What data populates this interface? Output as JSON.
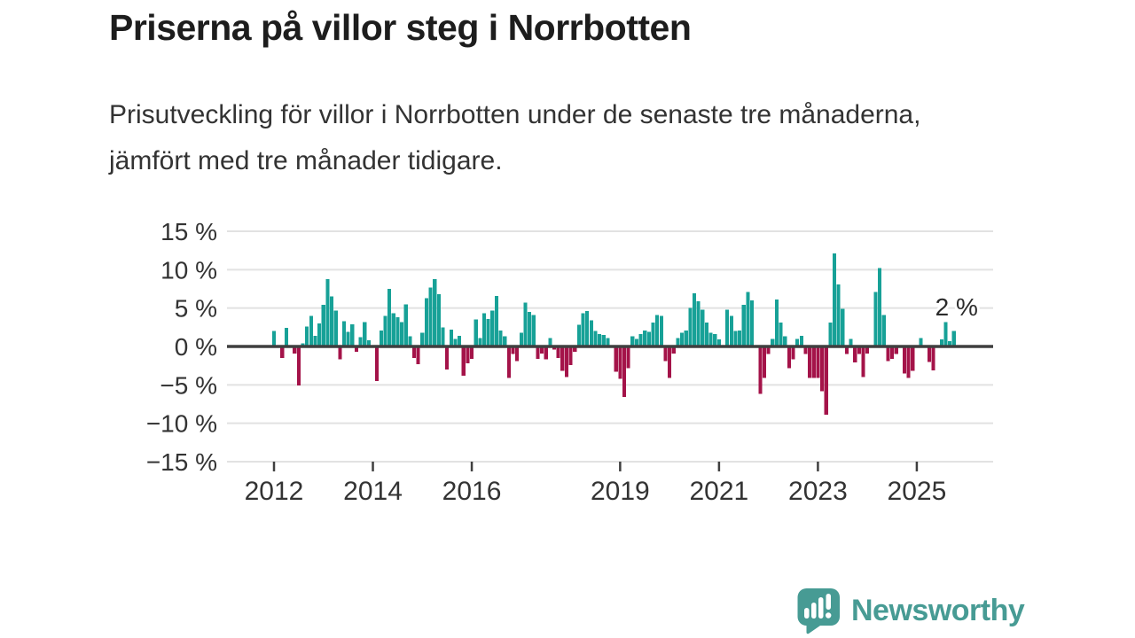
{
  "page": {
    "title": "Priserna på villor steg i Norrbotten",
    "subtitle": "Prisutveckling för villor i Norrbotten under de senaste tre månaderna, jämfört med tre månader tidigare."
  },
  "branding": {
    "logo_text": "Newsworthy",
    "logo_icon": "bar-chart-speech-bubble",
    "logo_color": "#479b94"
  },
  "chart_data": {
    "type": "bar",
    "title": "Prisutveckling för villor i Norrbotten",
    "unit": "%",
    "frequency": "monthly",
    "x_start": "2012-01",
    "x_end": "2025-10",
    "values": [
      2.0,
      0,
      -1.5,
      2.4,
      0,
      -0.9,
      -5.1,
      0.4,
      2.6,
      4.0,
      1.4,
      3.0,
      5.4,
      8.8,
      6.5,
      4.7,
      -1.7,
      3.3,
      1.9,
      2.9,
      -0.7,
      1.2,
      3.2,
      0.8,
      0,
      -4.5,
      2.1,
      4.0,
      7.5,
      4.3,
      3.8,
      3.2,
      5.5,
      1.3,
      -1.5,
      -2.3,
      1.8,
      6.3,
      7.7,
      8.8,
      6.8,
      2.5,
      -3.0,
      2.2,
      1.0,
      1.4,
      -3.8,
      -2.2,
      -1.6,
      3.5,
      1.1,
      4.3,
      3.6,
      4.7,
      6.6,
      2.1,
      1.3,
      -4.1,
      -1.0,
      -1.9,
      1.8,
      5.7,
      4.5,
      4.1,
      -1.6,
      -0.9,
      -1.7,
      1.1,
      -0.4,
      -1.5,
      -3.2,
      -4.0,
      -2.4,
      -0.7,
      2.8,
      4.3,
      4.6,
      3.4,
      2.0,
      1.6,
      1.5,
      1.1,
      0,
      -3.3,
      -4.2,
      -6.6,
      -2.8,
      1.3,
      1.0,
      1.6,
      2.1,
      1.9,
      3.1,
      4.1,
      4.0,
      -1.9,
      -4.1,
      -0.9,
      1.1,
      1.8,
      2.1,
      5.0,
      6.9,
      5.9,
      4.8,
      3.1,
      1.8,
      1.6,
      0.9,
      0,
      4.8,
      4.0,
      2.0,
      2.1,
      5.4,
      7.1,
      6.0,
      0,
      -6.2,
      -4.1,
      -1.0,
      1.0,
      6.1,
      3.1,
      1.3,
      -2.8,
      -1.7,
      1.0,
      1.4,
      -1.0,
      -4.1,
      -4.1,
      -4.1,
      -5.8,
      -8.9,
      3.1,
      12.1,
      8.1,
      4.9,
      -1.0,
      1.0,
      -2.1,
      -1.0,
      -4.0,
      -0.9,
      0,
      7.1,
      10.2,
      4.1,
      -1.9,
      -1.6,
      -1.0,
      0,
      -3.5,
      -4.1,
      -3.2,
      0,
      1.1,
      0,
      -2.0,
      -3.1,
      0,
      0.9,
      3.2,
      0.7,
      2.0
    ],
    "ylim": [
      -15,
      15
    ],
    "yticks": [
      15,
      10,
      5,
      0,
      -5,
      -10,
      -15
    ],
    "ytick_labels": [
      "15 %",
      "10 %",
      "5 %",
      "0 %",
      "−5 %",
      "−10 %",
      "−15 %"
    ],
    "xticks": [
      {
        "label": "2012",
        "month_index": 0
      },
      {
        "label": "2014",
        "month_index": 24
      },
      {
        "label": "2016",
        "month_index": 48
      },
      {
        "label": "2019",
        "month_index": 84
      },
      {
        "label": "2021",
        "month_index": 108
      },
      {
        "label": "2023",
        "month_index": 132
      },
      {
        "label": "2025",
        "month_index": 156
      }
    ],
    "annotation": {
      "text": "2 %",
      "month_index": 165,
      "value": 2.0
    },
    "positive_color": "#17a197",
    "negative_color": "#a41349",
    "grid": true,
    "legend": "none"
  }
}
